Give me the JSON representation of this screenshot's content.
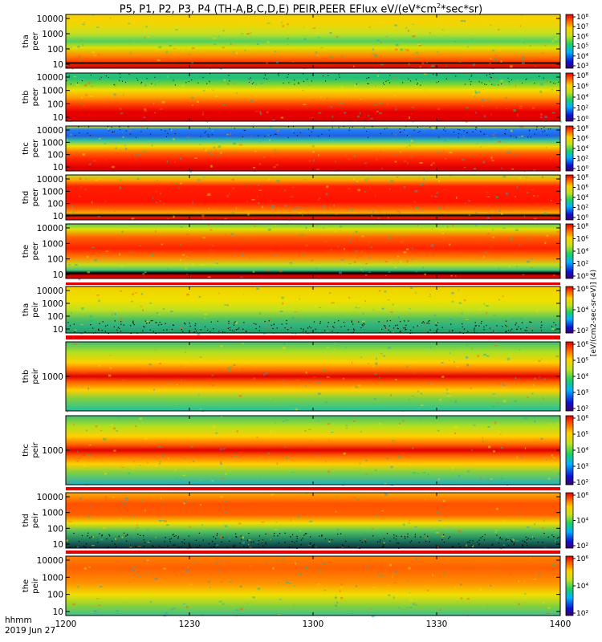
{
  "title_parts": {
    "pre": "P5, P1, P2, P3, P4 (TH-A,B,C,D,E) PEIR,PEER EFlux eV/(eV*cm",
    "sup": "2",
    "post": "*sec*sr)"
  },
  "chart_data": {
    "type": "heatmap",
    "title": "P5, P1, P2, P3, P4 (TH-A,B,C,D,E) PEIR,PEER EFlux eV/(eV*cm2*sec*sr)",
    "x_ticks": [
      "1200",
      "1230",
      "1300",
      "1330",
      "1400"
    ],
    "x_range": [
      "12:00",
      "14:00"
    ],
    "x_label_lines": [
      "hhmm",
      "2019 Jun 27"
    ],
    "colorbar_label": "[eV/(cm2-sec-sr-eV)] (4)",
    "panels": [
      {
        "name": "tha-peer",
        "ylabel": [
          "tha",
          "peer"
        ],
        "yticks": [
          "10000",
          "1000",
          "100",
          "10"
        ],
        "cbar_ticks": [
          "10⁸",
          "10⁷",
          "10⁶",
          "10⁵",
          "10⁴",
          "10³"
        ],
        "label_band": "peer"
      },
      {
        "name": "thb-peer",
        "ylabel": [
          "thb",
          "peer"
        ],
        "yticks": [
          "10000",
          "1000",
          "100",
          "10"
        ],
        "cbar_ticks": [
          "10⁸",
          "10⁶",
          "10⁴",
          "10²",
          "10⁰"
        ]
      },
      {
        "name": "thc-peer",
        "ylabel": [
          "thc",
          "peer"
        ],
        "yticks": [
          "10000",
          "1000",
          "100",
          "10"
        ],
        "cbar_ticks": [
          "10⁸",
          "10⁶",
          "10⁴",
          "10²",
          "10⁰"
        ]
      },
      {
        "name": "thd-peer",
        "ylabel": [
          "thd",
          "peer"
        ],
        "yticks": [
          "10000",
          "1000",
          "100",
          "10"
        ],
        "cbar_ticks": [
          "10⁸",
          "10⁶",
          "10⁴",
          "10²",
          "10⁰"
        ]
      },
      {
        "name": "the-peer",
        "ylabel": [
          "the",
          "peer"
        ],
        "yticks": [
          "10000",
          "1000",
          "100",
          "10"
        ],
        "cbar_ticks": [
          "10⁸",
          "10⁶",
          "10⁴",
          "10²",
          "10⁰"
        ]
      },
      {
        "name": "tha-peir",
        "ylabel": [
          "tha",
          "peir"
        ],
        "yticks": [
          "10000",
          "1000",
          "100",
          "10"
        ],
        "cbar_ticks": [
          "10⁶",
          "10⁴",
          "10²"
        ]
      },
      {
        "name": "thb-peir",
        "ylabel": [
          "thb",
          "peir"
        ],
        "yticks": [
          "1000"
        ],
        "cbar_ticks": [
          "10⁶",
          "10⁵",
          "10⁴",
          "10³",
          "10²"
        ]
      },
      {
        "name": "thc-peir",
        "ylabel": [
          "thc",
          "peir"
        ],
        "yticks": [
          "1000"
        ],
        "cbar_ticks": [
          "10⁶",
          "10⁵",
          "10⁴",
          "10³",
          "10²"
        ]
      },
      {
        "name": "thd-peir",
        "ylabel": [
          "thd",
          "peir"
        ],
        "yticks": [
          "10000",
          "1000",
          "100",
          "10"
        ],
        "cbar_ticks": [
          "10⁶",
          "10⁴",
          "10²"
        ]
      },
      {
        "name": "the-peir",
        "ylabel": [
          "the",
          "peir"
        ],
        "yticks": [
          "10000",
          "1000",
          "100",
          "10"
        ],
        "cbar_ticks": [
          "10⁶",
          "10⁴",
          "10²"
        ]
      }
    ]
  }
}
